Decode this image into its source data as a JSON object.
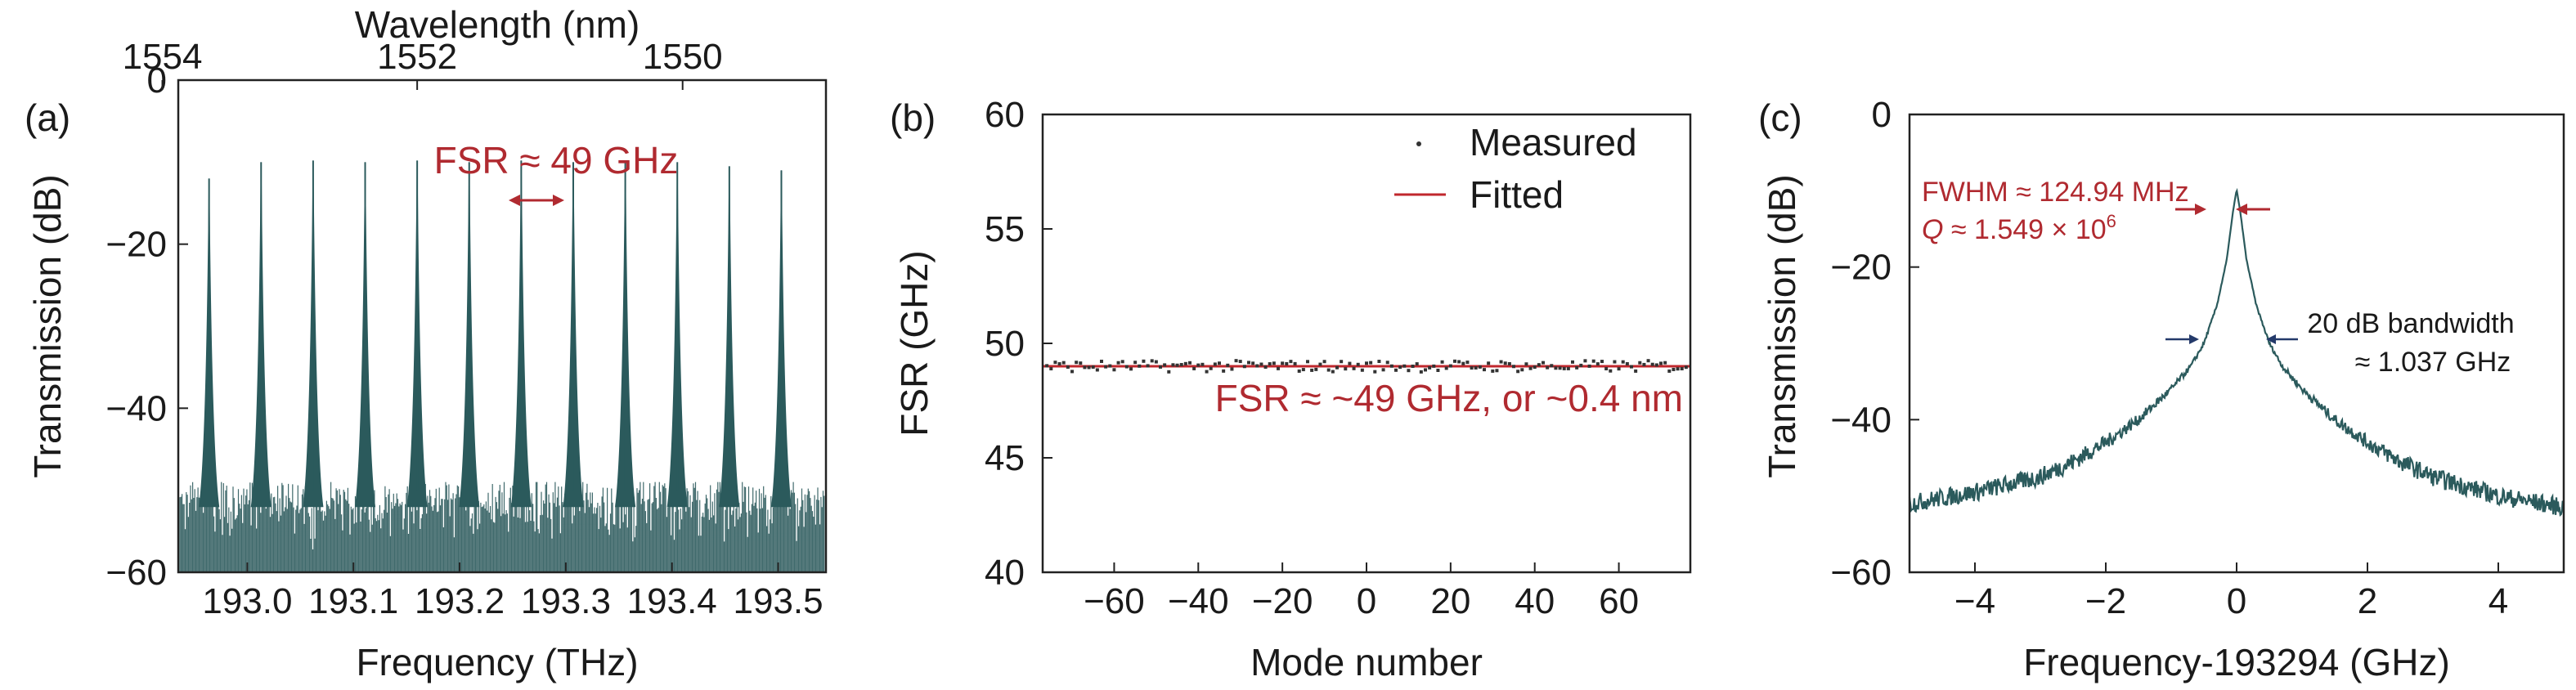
{
  "chart_data": [
    {
      "panel_label": "(a)",
      "type": "line",
      "xlabel": "Frequency (THz)",
      "ylabel": "Transmission (dB)",
      "top_xlabel": "Wavelength (nm)",
      "xlim": [
        192.935,
        193.545
      ],
      "ylim": [
        -60,
        0
      ],
      "xticks": [
        "193.0",
        "193.1",
        "193.2",
        "193.3",
        "193.4",
        "193.5"
      ],
      "yticks": [
        "−60",
        "−40",
        "−20",
        "0"
      ],
      "top_ticks": [
        "1554",
        "1552",
        "1550"
      ],
      "top_tick_freqs": [
        192.92,
        193.16,
        193.41
      ],
      "resonances": [
        {
          "x": 192.964,
          "y": -12
        },
        {
          "x": 193.013,
          "y": -10
        },
        {
          "x": 193.062,
          "y": -9.8
        },
        {
          "x": 193.111,
          "y": -10
        },
        {
          "x": 193.16,
          "y": -9.8
        },
        {
          "x": 193.209,
          "y": -10
        },
        {
          "x": 193.258,
          "y": -9.8
        },
        {
          "x": 193.307,
          "y": -10
        },
        {
          "x": 193.356,
          "y": -9.8
        },
        {
          "x": 193.405,
          "y": -10
        },
        {
          "x": 193.454,
          "y": -10.5
        },
        {
          "x": 193.503,
          "y": -11
        }
      ],
      "noise_floor_db": [
        -57,
        -52
      ],
      "annotation": "FSR ≈ 49 GHz",
      "color": "#2b5a5c",
      "annotation_color": "#b02a30"
    },
    {
      "panel_label": "(b)",
      "type": "scatter",
      "xlabel": "Mode number",
      "ylabel": "FSR (GHz)",
      "xlim": [
        -77,
        77
      ],
      "ylim": [
        40,
        60
      ],
      "xticks": [
        "−60",
        "−40",
        "−20",
        "0",
        "20",
        "40",
        "60"
      ],
      "yticks": [
        "40",
        "45",
        "50",
        "55",
        "60"
      ],
      "series": [
        {
          "name": "Measured",
          "x_range": [
            -76,
            76
          ],
          "y_mean": 49.0,
          "y_spread": 0.25,
          "marker": "dot",
          "color": "#333333"
        },
        {
          "name": "Fitted",
          "x": [
            -77,
            77
          ],
          "y": [
            49.0,
            49.0
          ],
          "color": "#c0272d"
        }
      ],
      "legend": "top-right",
      "annotation": "FSR ≈ ~49 GHz, or ~0.4 nm",
      "annotation_color": "#b02a30"
    },
    {
      "panel_label": "(c)",
      "type": "line",
      "xlabel": "Frequency-193294 (GHz)",
      "ylabel": "Transmission (dB)",
      "xlim": [
        -5,
        5
      ],
      "ylim": [
        -60,
        0
      ],
      "xticks": [
        "−4",
        "−2",
        "0",
        "2",
        "4"
      ],
      "yticks": [
        "−60",
        "−40",
        "−20",
        "0"
      ],
      "series": [
        {
          "color": "#2b5a5c",
          "x": [
            -5.0,
            -4.0,
            -3.0,
            -2.5,
            -2.0,
            -1.5,
            -1.0,
            -0.7,
            -0.5,
            -0.3,
            -0.15,
            -0.06,
            0.0,
            0.06,
            0.15,
            0.3,
            0.5,
            0.7,
            1.0,
            1.5,
            2.0,
            2.5,
            3.0,
            4.0,
            5.0
          ],
          "y": [
            -51,
            -49.5,
            -47.5,
            -45.5,
            -43,
            -40,
            -36,
            -33,
            -30,
            -25,
            -19,
            -13,
            -9.8,
            -13,
            -19,
            -25,
            -30,
            -33,
            -36,
            -40,
            -43,
            -45.5,
            -47.5,
            -50,
            -51.5
          ]
        }
      ],
      "annotations": {
        "fwhm": "FWHM ≈ 124.94 MHz",
        "q_prefix": "Q",
        "q_text": " ≈ 1.549 × 10",
        "q_exp": "6",
        "bw_line1": "20 dB bandwidth",
        "bw_line2": "≈ 1.037 GHz"
      },
      "annotation_color": "#b02a30",
      "arrow_color_bw": "#243a6a"
    }
  ]
}
